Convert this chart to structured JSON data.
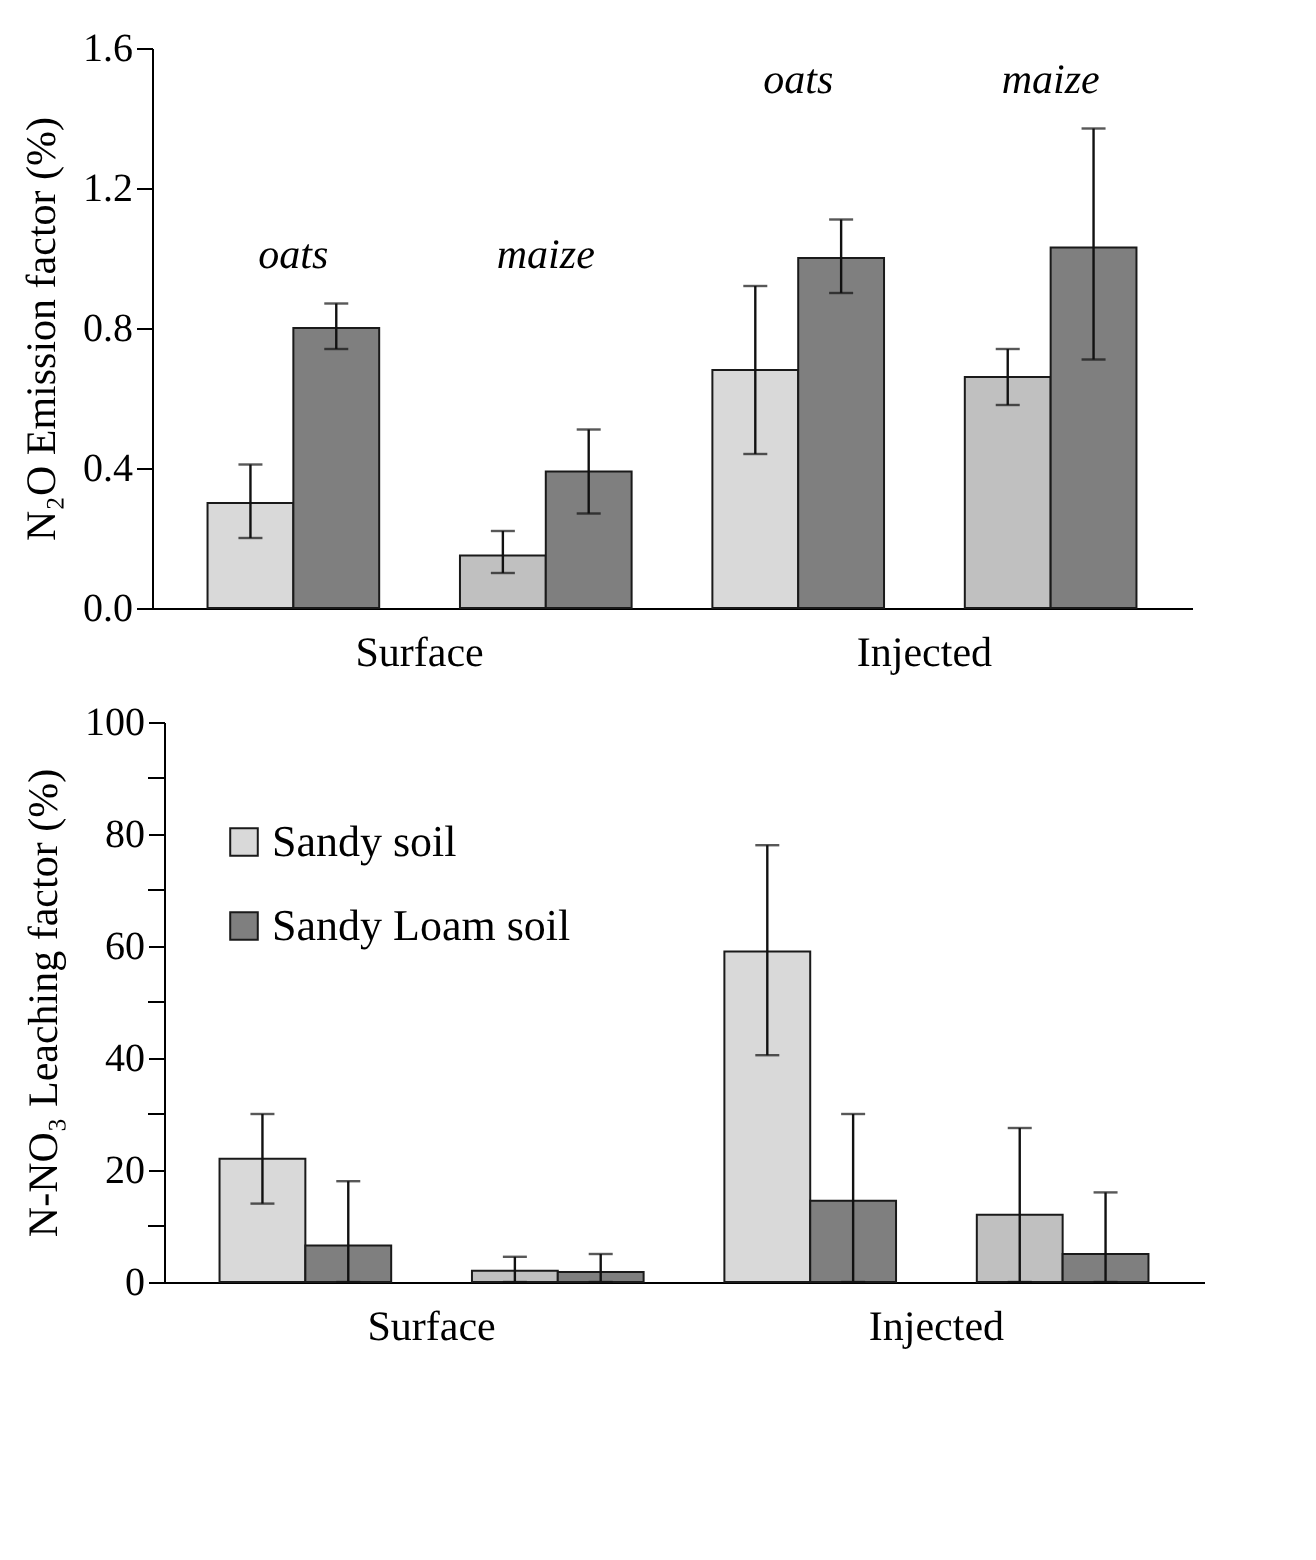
{
  "chart_data": [
    {
      "type": "bar",
      "ylabel": "N₂O Emission factor (%)",
      "categories": [
        null,
        null,
        null,
        null
      ],
      "annotations": [
        "oats",
        "maize",
        "oats",
        "maize",
        "Surface",
        "Injected"
      ],
      "series": [
        {
          "colors": [
            "#d9d9d9",
            "#c0c0c0",
            "#d9d9d9",
            "#c0c0c0"
          ],
          "values": [
            0.3,
            0.15,
            0.68,
            0.66
          ],
          "errors": [
            [
              0.2,
              0.41
            ],
            [
              0.1,
              0.22
            ],
            [
              0.44,
              0.92
            ],
            [
              0.58,
              0.74
            ]
          ]
        },
        {
          "color": "#7f7f7f",
          "values": [
            0.8,
            0.39,
            1.0,
            1.03
          ],
          "errors": [
            [
              0.74,
              0.87
            ],
            [
              0.27,
              0.51
            ],
            [
              0.9,
              1.11
            ],
            [
              0.71,
              1.37
            ]
          ]
        }
      ],
      "ylim": [
        0,
        1.6
      ],
      "yticks": [
        {
          "value": 0,
          "label": "0.0"
        },
        0.4,
        0.8,
        1.2,
        1.6
      ],
      "legend": false,
      "grid": false
    },
    {
      "type": "bar",
      "ylabel": "N-NO₃ Leaching factor (%)",
      "categories": [
        null,
        null,
        null,
        null
      ],
      "annotations": [
        "Surface",
        "Injected"
      ],
      "series": [
        {
          "name": "Sandy soil",
          "color": "#d9d9d9",
          "colors": [
            "#d9d9d9",
            "#c0c0c0",
            "#d9d9d9",
            "#c0c0c0"
          ],
          "values": [
            22,
            2,
            59,
            12
          ],
          "errors": [
            [
              14,
              30
            ],
            [
              0,
              4.5
            ],
            [
              40.5,
              78
            ],
            [
              0,
              27.5
            ]
          ]
        },
        {
          "name": "Sandy Loam soil",
          "color": "#7f7f7f",
          "values": [
            6.5,
            1.8,
            14.5,
            5
          ],
          "errors": [
            [
              0,
              18
            ],
            [
              0,
              5
            ],
            [
              0,
              30
            ],
            [
              0,
              16
            ]
          ]
        }
      ],
      "ylim": [
        0,
        100
      ],
      "yticks": [
        0,
        {
          "value": 10,
          "label": null
        },
        20,
        {
          "value": 30,
          "label": null
        },
        40,
        {
          "value": 50,
          "label": null
        },
        60,
        {
          "value": 70,
          "label": null
        },
        80,
        {
          "value": 90,
          "label": null
        },
        100
      ],
      "legend": "top left",
      "grid": false
    }
  ]
}
